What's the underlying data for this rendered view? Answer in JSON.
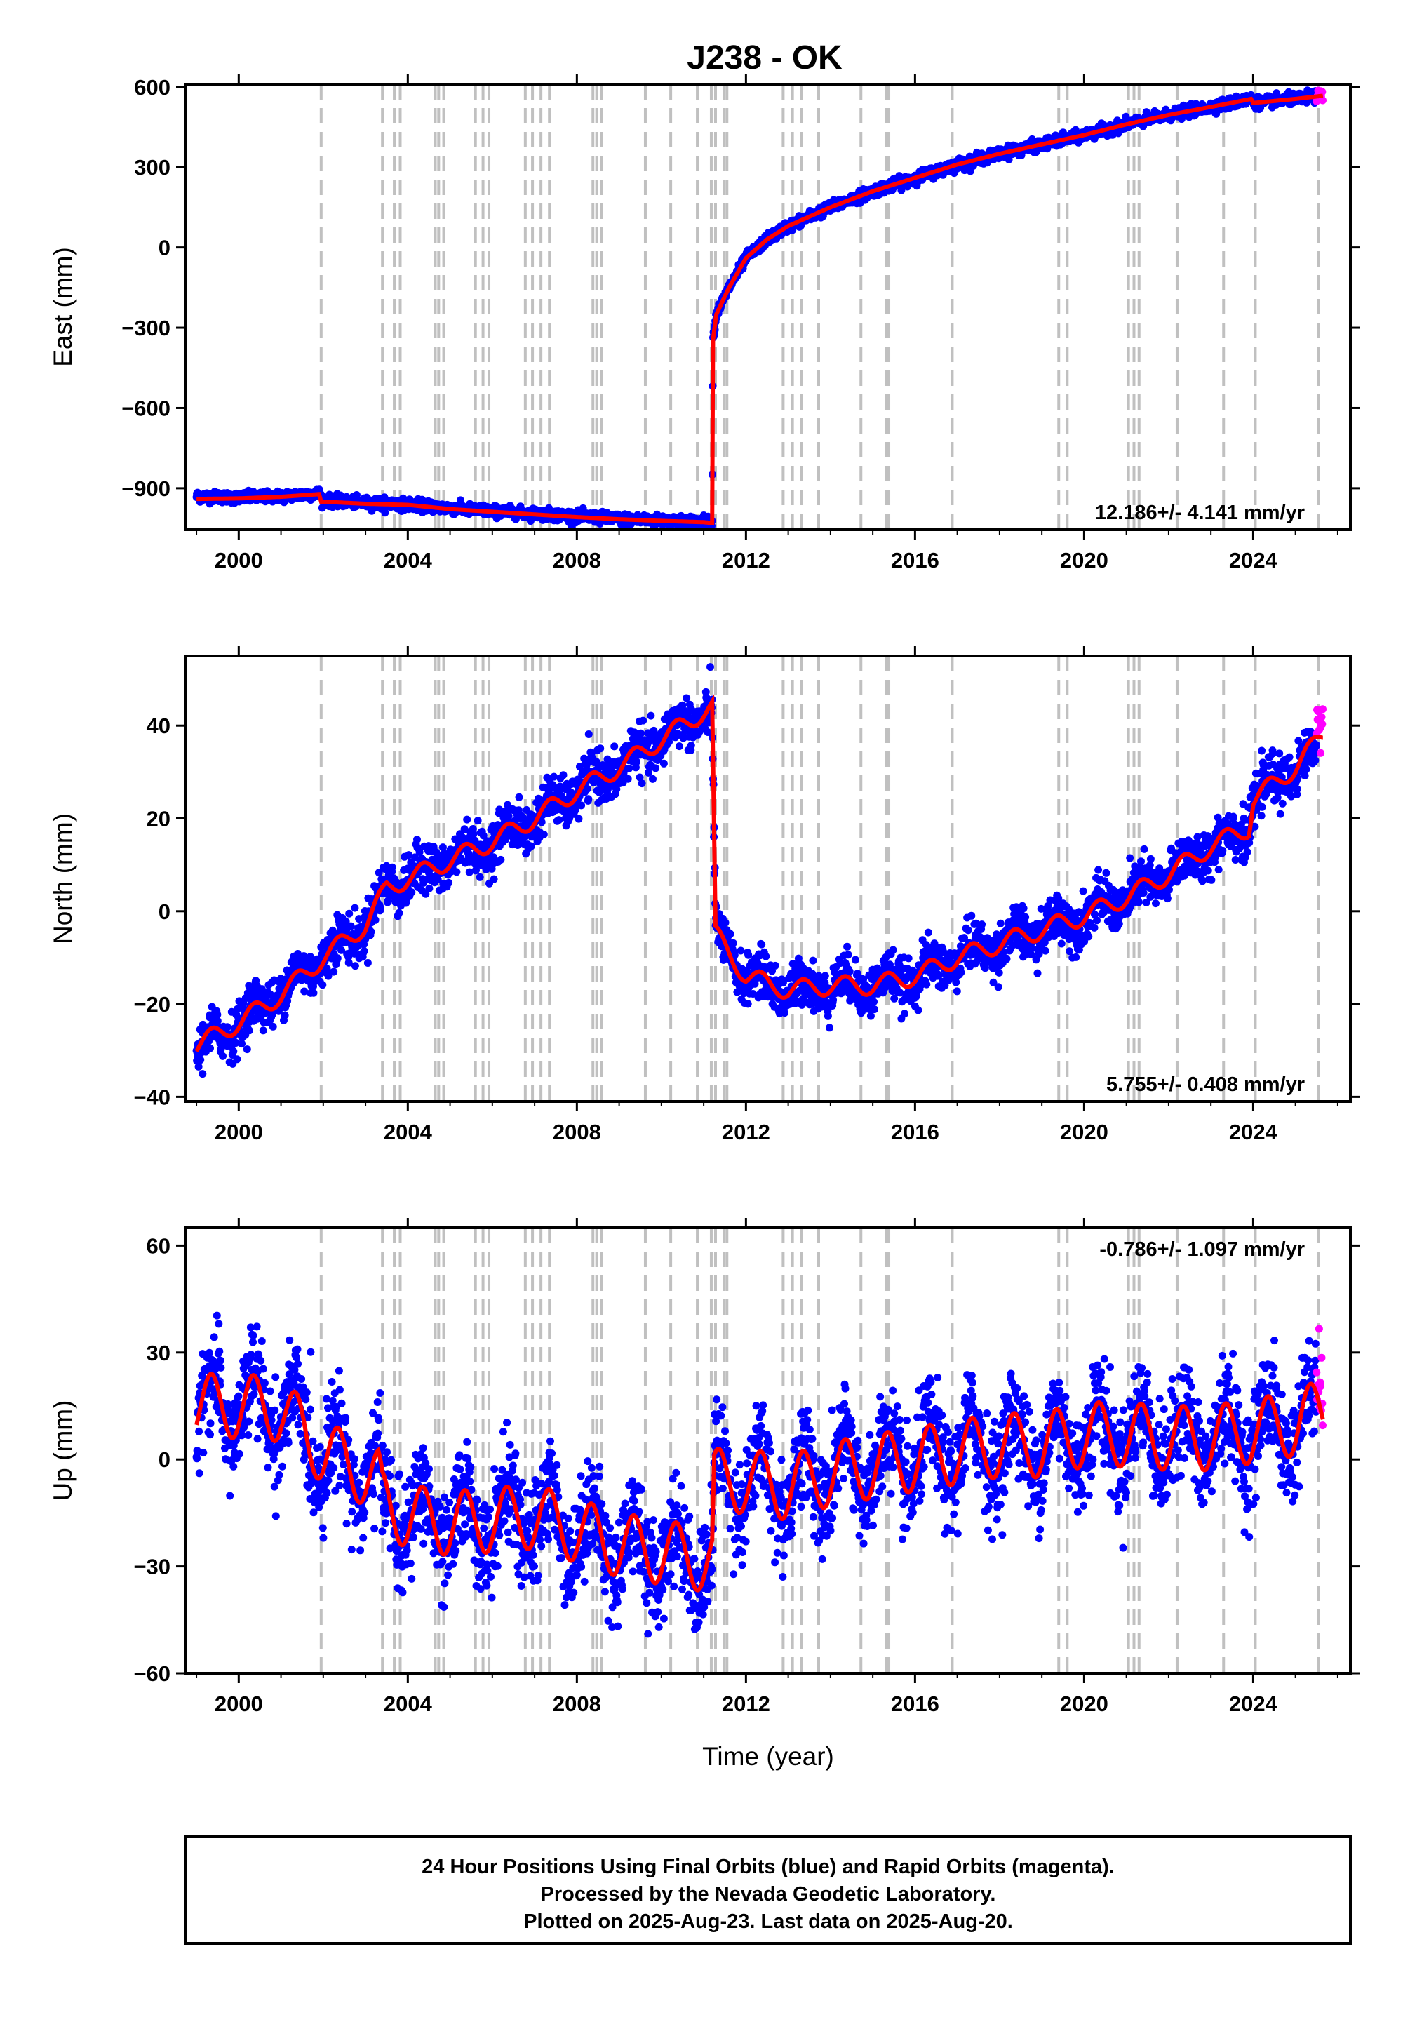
{
  "chart_data": [
    {
      "type": "scatter",
      "title": "J238 - OK",
      "xlabel": "",
      "ylabel": "East (mm)",
      "xlim": [
        1998.75,
        2026.3
      ],
      "ylim": [
        -1055,
        610
      ],
      "x_ticks": [
        2000,
        2004,
        2008,
        2012,
        2016,
        2020,
        2024
      ],
      "y_ticks": [
        -900,
        -600,
        -300,
        0,
        300,
        600
      ],
      "grid": false,
      "rate_text": "12.186+/- 4.141 mm/yr",
      "series": [
        {
          "color": "#0000ff",
          "marker": "dots",
          "from": 1999.0,
          "to": 2025.5,
          "points": [
            [
              1999.0,
              -930
            ],
            [
              2000.0,
              -935
            ],
            [
              2001.0,
              -930
            ],
            [
              2001.9,
              -920
            ],
            [
              2002.0,
              -945
            ],
            [
              2003.0,
              -955
            ],
            [
              2004.0,
              -960
            ],
            [
              2005.0,
              -975
            ],
            [
              2006.0,
              -985
            ],
            [
              2007.0,
              -995
            ],
            [
              2008.0,
              -1005
            ],
            [
              2009.0,
              -1015
            ],
            [
              2010.0,
              -1020
            ],
            [
              2011.0,
              -1025
            ],
            [
              2011.2,
              -1030
            ],
            [
              2011.22,
              -340
            ],
            [
              2011.3,
              -250
            ],
            [
              2011.6,
              -150
            ],
            [
              2012.0,
              -40
            ],
            [
              2012.5,
              30
            ],
            [
              2013.0,
              80
            ],
            [
              2014.0,
              150
            ],
            [
              2015.0,
              210
            ],
            [
              2016.0,
              260
            ],
            [
              2017.0,
              310
            ],
            [
              2018.0,
              350
            ],
            [
              2019.0,
              385
            ],
            [
              2020.0,
              420
            ],
            [
              2021.0,
              460
            ],
            [
              2022.0,
              495
            ],
            [
              2023.0,
              525
            ],
            [
              2023.95,
              555
            ],
            [
              2024.0,
              540
            ],
            [
              2025.0,
              555
            ],
            [
              2025.5,
              565
            ]
          ]
        },
        {
          "color": "#ff00ff",
          "marker": "dots",
          "from": 2025.5,
          "to": 2025.65,
          "points": [
            [
              2025.5,
              565
            ],
            [
              2025.65,
              568
            ]
          ]
        }
      ],
      "model": {
        "color": "#ff0000",
        "points": [
          [
            1999.0,
            -940
          ],
          [
            2000.0,
            -938
          ],
          [
            2001.0,
            -932
          ],
          [
            2001.9,
            -922
          ],
          [
            2001.95,
            -950
          ],
          [
            2003.0,
            -958
          ],
          [
            2004.0,
            -962
          ],
          [
            2005.0,
            -978
          ],
          [
            2006.0,
            -988
          ],
          [
            2007.0,
            -998
          ],
          [
            2008.0,
            -1008
          ],
          [
            2009.0,
            -1016
          ],
          [
            2010.0,
            -1022
          ],
          [
            2011.0,
            -1027
          ],
          [
            2011.2,
            -1030
          ],
          [
            2011.22,
            -345
          ],
          [
            2011.3,
            -250
          ],
          [
            2011.6,
            -150
          ],
          [
            2012.0,
            -40
          ],
          [
            2012.5,
            30
          ],
          [
            2013.0,
            80
          ],
          [
            2014.0,
            150
          ],
          [
            2015.0,
            210
          ],
          [
            2016.0,
            260
          ],
          [
            2017.0,
            310
          ],
          [
            2018.0,
            350
          ],
          [
            2019.0,
            385
          ],
          [
            2020.0,
            420
          ],
          [
            2021.0,
            460
          ],
          [
            2022.0,
            495
          ],
          [
            2023.0,
            525
          ],
          [
            2023.95,
            555
          ],
          [
            2024.0,
            540
          ],
          [
            2025.0,
            555
          ],
          [
            2025.65,
            567
          ]
        ]
      },
      "noise": 10,
      "seasonal": 0
    },
    {
      "type": "scatter",
      "title": "",
      "xlabel": "",
      "ylabel": "North (mm)",
      "xlim": [
        1998.75,
        2026.3
      ],
      "ylim": [
        -41,
        55
      ],
      "x_ticks": [
        2000,
        2004,
        2008,
        2012,
        2016,
        2020,
        2024
      ],
      "y_ticks": [
        -40,
        -20,
        0,
        20,
        40
      ],
      "grid": false,
      "rate_text": "5.755+/- 0.408 mm/yr",
      "series": [
        {
          "color": "#0000ff",
          "marker": "dots",
          "from": 1999.0,
          "to": 2025.5,
          "points": [
            [
              1999.0,
              -30
            ],
            [
              2000.0,
              -24
            ],
            [
              2001.0,
              -17
            ],
            [
              2002.0,
              -10
            ],
            [
              2003.0,
              -3
            ],
            [
              2003.5,
              5
            ],
            [
              2004.0,
              7
            ],
            [
              2005.0,
              11
            ],
            [
              2006.0,
              15
            ],
            [
              2007.0,
              20
            ],
            [
              2008.0,
              26
            ],
            [
              2009.0,
              31
            ],
            [
              2010.0,
              37
            ],
            [
              2011.0,
              43
            ],
            [
              2011.2,
              43
            ],
            [
              2011.28,
              -5
            ],
            [
              2011.6,
              -9
            ],
            [
              2012.0,
              -14
            ],
            [
              2013.0,
              -17
            ],
            [
              2014.0,
              -16
            ],
            [
              2015.0,
              -16
            ],
            [
              2016.0,
              -14
            ],
            [
              2017.0,
              -10
            ],
            [
              2018.0,
              -7
            ],
            [
              2019.0,
              -4
            ],
            [
              2020.0,
              -1
            ],
            [
              2021.0,
              3
            ],
            [
              2022.0,
              8
            ],
            [
              2023.0,
              14
            ],
            [
              2023.9,
              18
            ],
            [
              2024.0,
              24
            ],
            [
              2025.0,
              31
            ],
            [
              2025.5,
              34
            ]
          ]
        },
        {
          "color": "#ff00ff",
          "marker": "dots",
          "from": 2025.5,
          "to": 2025.65,
          "points": [
            [
              2025.5,
              36
            ],
            [
              2025.65,
              42
            ]
          ]
        }
      ],
      "model": {
        "color": "#ff0000",
        "points": [
          [
            1999.0,
            -29
          ],
          [
            2000.0,
            -24
          ],
          [
            2001.0,
            -18
          ],
          [
            2002.0,
            -10
          ],
          [
            2003.0,
            -3
          ],
          [
            2003.5,
            5
          ],
          [
            2004.0,
            7
          ],
          [
            2005.0,
            11
          ],
          [
            2006.0,
            15
          ],
          [
            2007.0,
            20
          ],
          [
            2008.0,
            26
          ],
          [
            2009.0,
            31
          ],
          [
            2010.0,
            37
          ],
          [
            2011.0,
            43
          ],
          [
            2011.2,
            44
          ],
          [
            2011.28,
            -5
          ],
          [
            2011.6,
            -9
          ],
          [
            2012.0,
            -14
          ],
          [
            2013.0,
            -17
          ],
          [
            2014.0,
            -16
          ],
          [
            2015.0,
            -16
          ],
          [
            2016.0,
            -14
          ],
          [
            2017.0,
            -10
          ],
          [
            2018.0,
            -7
          ],
          [
            2019.0,
            -4
          ],
          [
            2020.0,
            -1
          ],
          [
            2021.0,
            3
          ],
          [
            2022.0,
            8
          ],
          [
            2023.0,
            14
          ],
          [
            2023.9,
            18
          ],
          [
            2024.0,
            24
          ],
          [
            2025.0,
            31
          ],
          [
            2025.65,
            38
          ]
        ]
      },
      "noise": 2.5,
      "seasonal": 2
    },
    {
      "type": "scatter",
      "title": "",
      "xlabel": "Time (year)",
      "ylabel": "Up (mm)",
      "xlim": [
        1998.75,
        2026.3
      ],
      "ylim": [
        -60,
        65
      ],
      "x_ticks": [
        2000,
        2004,
        2008,
        2012,
        2016,
        2020,
        2024
      ],
      "y_ticks": [
        -60,
        -30,
        0,
        30,
        60
      ],
      "grid": false,
      "rate_text": "-0.786+/- 1.097 mm/yr",
      "series": [
        {
          "color": "#0000ff",
          "marker": "dots",
          "from": 1999.0,
          "to": 2025.5,
          "points": [
            [
              1999.0,
              15
            ],
            [
              2000.0,
              15
            ],
            [
              2001.0,
              14
            ],
            [
              2002.0,
              2
            ],
            [
              2003.0,
              -4
            ],
            [
              2003.3,
              -6
            ],
            [
              2003.4,
              -12
            ],
            [
              2004.0,
              -16
            ],
            [
              2005.0,
              -18
            ],
            [
              2006.0,
              -17
            ],
            [
              2007.0,
              -16
            ],
            [
              2008.0,
              -20
            ],
            [
              2009.0,
              -24
            ],
            [
              2010.0,
              -26
            ],
            [
              2011.0,
              -28
            ],
            [
              2011.2,
              -28
            ],
            [
              2011.25,
              -6
            ],
            [
              2012.0,
              -6
            ],
            [
              2013.0,
              -8
            ],
            [
              2014.0,
              -4
            ],
            [
              2015.0,
              -2
            ],
            [
              2016.0,
              0
            ],
            [
              2017.0,
              2
            ],
            [
              2018.0,
              4
            ],
            [
              2019.0,
              4
            ],
            [
              2020.0,
              7
            ],
            [
              2021.0,
              7
            ],
            [
              2022.0,
              6
            ],
            [
              2023.0,
              6
            ],
            [
              2024.0,
              8
            ],
            [
              2025.0,
              10
            ],
            [
              2025.5,
              12
            ]
          ]
        },
        {
          "color": "#ff00ff",
          "marker": "dots",
          "from": 2025.5,
          "to": 2025.65,
          "points": [
            [
              2025.5,
              15
            ],
            [
              2025.65,
              20
            ]
          ]
        }
      ],
      "model": {
        "color": "#ff0000",
        "points": [
          [
            1999.0,
            15
          ],
          [
            2000.0,
            15
          ],
          [
            2001.0,
            14
          ],
          [
            2002.0,
            2
          ],
          [
            2003.0,
            -4
          ],
          [
            2003.3,
            -6
          ],
          [
            2003.4,
            -12
          ],
          [
            2004.0,
            -16
          ],
          [
            2005.0,
            -18
          ],
          [
            2006.0,
            -17
          ],
          [
            2007.0,
            -16
          ],
          [
            2008.0,
            -20
          ],
          [
            2009.0,
            -24
          ],
          [
            2010.0,
            -26
          ],
          [
            2011.0,
            -28
          ],
          [
            2011.2,
            -28
          ],
          [
            2011.25,
            -6
          ],
          [
            2012.0,
            -6
          ],
          [
            2013.0,
            -8
          ],
          [
            2014.0,
            -4
          ],
          [
            2015.0,
            -2
          ],
          [
            2016.0,
            0
          ],
          [
            2017.0,
            2
          ],
          [
            2018.0,
            4
          ],
          [
            2019.0,
            4
          ],
          [
            2020.0,
            7
          ],
          [
            2021.0,
            7
          ],
          [
            2022.0,
            6
          ],
          [
            2023.0,
            6
          ],
          [
            2024.0,
            8
          ],
          [
            2025.0,
            10
          ],
          [
            2025.65,
            14
          ]
        ]
      },
      "noise": 7,
      "seasonal": 9
    }
  ],
  "event_lines": {
    "color": "#c0c0c0",
    "years": [
      2001.95,
      2003.4,
      2003.68,
      2003.82,
      2004.65,
      2004.73,
      2004.85,
      2005.6,
      2005.78,
      2005.92,
      2006.78,
      2006.95,
      2007.15,
      2007.35,
      2008.38,
      2008.47,
      2008.58,
      2009.62,
      2010.22,
      2010.85,
      2011.18,
      2011.28,
      2011.48,
      2011.55,
      2012.88,
      2013.1,
      2013.32,
      2013.72,
      2014.72,
      2015.32,
      2015.38,
      2016.88,
      2019.4,
      2019.6,
      2021.05,
      2021.18,
      2021.3,
      2022.2,
      2023.3,
      2024.05,
      2025.55
    ]
  },
  "footer": {
    "line1": "24 Hour Positions Using Final Orbits (blue) and Rapid Orbits (magenta).",
    "line2": "Processed by the Nevada Geodetic Laboratory.",
    "line3": "Plotted on 2025-Aug-23. Last data on 2025-Aug-20."
  }
}
